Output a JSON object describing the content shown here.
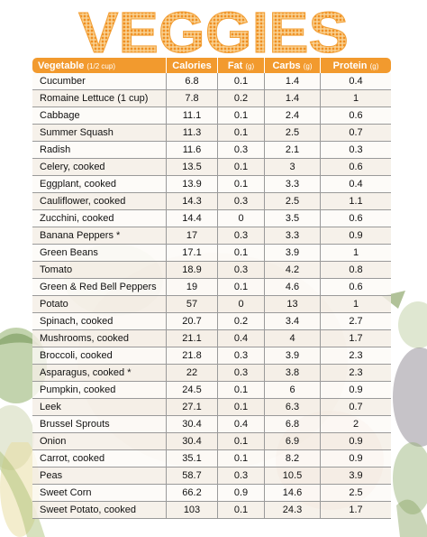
{
  "title": "VEGGIES",
  "colors": {
    "header_bg": "#f29a2e",
    "title_orange": "#f5a43a",
    "row_alt": "#f4eee5"
  },
  "columns": [
    {
      "label": "Vegetable",
      "unit": "(1/2 cup)"
    },
    {
      "label": "Calories",
      "unit": ""
    },
    {
      "label": "Fat",
      "unit": "(g)"
    },
    {
      "label": "Carbs",
      "unit": "(g)"
    },
    {
      "label": "Protein",
      "unit": "(g)"
    }
  ],
  "rows": [
    [
      "Cucumber",
      "6.8",
      "0.1",
      "1.4",
      "0.4"
    ],
    [
      "Romaine Lettuce (1 cup)",
      "7.8",
      "0.2",
      "1.4",
      "1"
    ],
    [
      "Cabbage",
      "11.1",
      "0.1",
      "2.4",
      "0.6"
    ],
    [
      "Summer Squash",
      "11.3",
      "0.1",
      "2.5",
      "0.7"
    ],
    [
      "Radish",
      "11.6",
      "0.3",
      "2.1",
      "0.3"
    ],
    [
      "Celery, cooked",
      "13.5",
      "0.1",
      "3",
      "0.6"
    ],
    [
      "Eggplant, cooked",
      "13.9",
      "0.1",
      "3.3",
      "0.4"
    ],
    [
      "Cauliflower, cooked",
      "14.3",
      "0.3",
      "2.5",
      "1.1"
    ],
    [
      "Zucchini, cooked",
      "14.4",
      "0",
      "3.5",
      "0.6"
    ],
    [
      "Banana Peppers *",
      "17",
      "0.3",
      "3.3",
      "0.9"
    ],
    [
      "Green Beans",
      "17.1",
      "0.1",
      "3.9",
      "1"
    ],
    [
      "Tomato",
      "18.9",
      "0.3",
      "4.2",
      "0.8"
    ],
    [
      "Green & Red Bell Peppers",
      "19",
      "0.1",
      "4.6",
      "0.6"
    ],
    [
      "Potato",
      "57",
      "0",
      "13",
      "1"
    ],
    [
      "Spinach, cooked",
      "20.7",
      "0.2",
      "3.4",
      "2.7"
    ],
    [
      "Mushrooms, cooked",
      "21.1",
      "0.4",
      "4",
      "1.7"
    ],
    [
      "Broccoli, cooked",
      "21.8",
      "0.3",
      "3.9",
      "2.3"
    ],
    [
      "Asparagus, cooked *",
      "22",
      "0.3",
      "3.8",
      "2.3"
    ],
    [
      "Pumpkin, cooked",
      "24.5",
      "0.1",
      "6",
      "0.9"
    ],
    [
      "Leek",
      "27.1",
      "0.1",
      "6.3",
      "0.7"
    ],
    [
      "Brussel Sprouts",
      "30.4",
      "0.4",
      "6.8",
      "2"
    ],
    [
      "Onion",
      "30.4",
      "0.1",
      "6.9",
      "0.9"
    ],
    [
      "Carrot, cooked",
      "35.1",
      "0.1",
      "8.2",
      "0.9"
    ],
    [
      "Peas",
      "58.7",
      "0.3",
      "10.5",
      "3.9"
    ],
    [
      "Sweet Corn",
      "66.2",
      "0.9",
      "14.6",
      "2.5"
    ],
    [
      "Sweet Potato, cooked",
      "103",
      "0.1",
      "24.3",
      "1.7"
    ]
  ]
}
